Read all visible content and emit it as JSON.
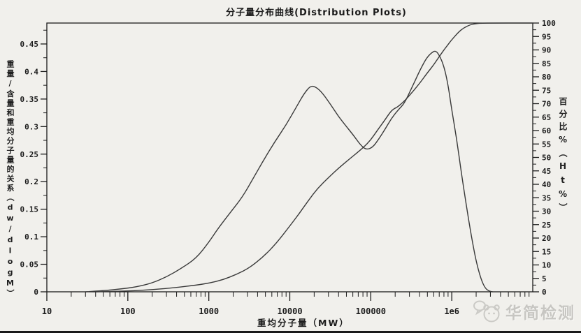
{
  "title": "分子量分布曲线(Distribution Plots)",
  "watermark": {
    "text": "华简检测",
    "logo": "chat-bubble-face-logo"
  },
  "colors": {
    "curve": "#3a3a3a",
    "axis": "#1b1b1b",
    "background": "#f1f0ec",
    "watermark": "#c7c6c2"
  },
  "chart_data": {
    "type": "line",
    "title": "分子量分布曲线(Distribution Plots)",
    "grid": false,
    "legend": "none",
    "x_axis": {
      "label": "重均分子量（MW）",
      "scale": "log",
      "min": 10,
      "max": 10000000,
      "tick_values": [
        10,
        100,
        1000,
        10000,
        100000,
        1000000
      ],
      "tick_labels": [
        "10",
        "100",
        "1000",
        "10000",
        "100000",
        "1e6"
      ]
    },
    "y_left_axis": {
      "label": "重量/含量和重均分子量的关系（dw/dlogM）",
      "min": 0,
      "axis_top_value": 0.488,
      "tick_values": [
        0,
        0.05,
        0.1,
        0.15,
        0.2,
        0.25,
        0.3,
        0.35,
        0.4,
        0.45
      ],
      "tick_labels": [
        "0",
        "0.05",
        "0.1",
        "0.15",
        "0.2",
        "0.25",
        "0.3",
        "0.35",
        "0.4",
        "0.45"
      ],
      "minor_tick_step": 0.025
    },
    "y_right_axis": {
      "label": "百分比%（Ht%）",
      "min": 0,
      "max": 100,
      "tick_values": [
        0,
        5,
        10,
        15,
        20,
        25,
        30,
        35,
        40,
        45,
        50,
        55,
        60,
        65,
        70,
        75,
        80,
        85,
        90,
        95,
        100
      ],
      "tick_labels": [
        "0",
        "5",
        "10",
        "15",
        "20",
        "25",
        "30",
        "35",
        "40",
        "45",
        "50",
        "55",
        "60",
        "65",
        "70",
        "75",
        "80",
        "85",
        "90",
        "95",
        "100"
      ],
      "minor_tick_step": 2.5
    },
    "series": [
      {
        "name": "differential-distribution-dw-dlogM",
        "axis": "left",
        "points": [
          [
            30,
            0
          ],
          [
            50,
            0.002
          ],
          [
            80,
            0.005
          ],
          [
            130,
            0.009
          ],
          [
            200,
            0.016
          ],
          [
            300,
            0.027
          ],
          [
            450,
            0.042
          ],
          [
            700,
            0.061
          ],
          [
            1000,
            0.09
          ],
          [
            1300,
            0.115
          ],
          [
            1800,
            0.142
          ],
          [
            2600,
            0.172
          ],
          [
            3500,
            0.205
          ],
          [
            4700,
            0.238
          ],
          [
            6500,
            0.272
          ],
          [
            9000,
            0.303
          ],
          [
            12000,
            0.335
          ],
          [
            15000,
            0.36
          ],
          [
            18000,
            0.374
          ],
          [
            21000,
            0.372
          ],
          [
            25000,
            0.362
          ],
          [
            32000,
            0.34
          ],
          [
            40000,
            0.318
          ],
          [
            50000,
            0.3
          ],
          [
            62000,
            0.283
          ],
          [
            75000,
            0.266
          ],
          [
            88000,
            0.258
          ],
          [
            105000,
            0.262
          ],
          [
            125000,
            0.277
          ],
          [
            150000,
            0.295
          ],
          [
            180000,
            0.315
          ],
          [
            220000,
            0.331
          ],
          [
            260000,
            0.342
          ],
          [
            320000,
            0.37
          ],
          [
            400000,
            0.401
          ],
          [
            480000,
            0.423
          ],
          [
            560000,
            0.434
          ],
          [
            630000,
            0.438
          ],
          [
            700000,
            0.43
          ],
          [
            800000,
            0.41
          ],
          [
            900000,
            0.376
          ],
          [
            1000000,
            0.33
          ],
          [
            1150000,
            0.277
          ],
          [
            1300000,
            0.22
          ],
          [
            1500000,
            0.16
          ],
          [
            1750000,
            0.1
          ],
          [
            2000000,
            0.055
          ],
          [
            2300000,
            0.022
          ],
          [
            2600000,
            0.006
          ],
          [
            2900000,
            0.001
          ],
          [
            3200000,
            0
          ]
        ]
      },
      {
        "name": "cumulative-percent-Ht",
        "axis": "right",
        "points": [
          [
            40,
            0
          ],
          [
            100,
            0.3
          ],
          [
            200,
            0.8
          ],
          [
            400,
            1.6
          ],
          [
            700,
            2.5
          ],
          [
            1000,
            3.2
          ],
          [
            1500,
            4.5
          ],
          [
            2200,
            6.5
          ],
          [
            3200,
            9
          ],
          [
            4700,
            13
          ],
          [
            6800,
            18
          ],
          [
            10000,
            24.5
          ],
          [
            13000,
            29
          ],
          [
            17000,
            34
          ],
          [
            22000,
            38.5
          ],
          [
            30000,
            42.5
          ],
          [
            40000,
            46
          ],
          [
            55000,
            49.5
          ],
          [
            80000,
            53.5
          ],
          [
            100000,
            56.5
          ],
          [
            120000,
            60
          ],
          [
            150000,
            64
          ],
          [
            175000,
            67
          ],
          [
            195000,
            68.2
          ],
          [
            215000,
            68.8
          ],
          [
            250000,
            70.5
          ],
          [
            300000,
            73
          ],
          [
            400000,
            77.5
          ],
          [
            500000,
            81.5
          ],
          [
            600000,
            84.5
          ],
          [
            700000,
            87.5
          ],
          [
            800000,
            90
          ],
          [
            900000,
            92
          ],
          [
            1000000,
            93.8
          ],
          [
            1200000,
            96.5
          ],
          [
            1400000,
            98.2
          ],
          [
            1700000,
            99.4
          ],
          [
            2000000,
            99.8
          ],
          [
            2400000,
            100
          ],
          [
            10000000,
            100
          ]
        ]
      }
    ]
  }
}
